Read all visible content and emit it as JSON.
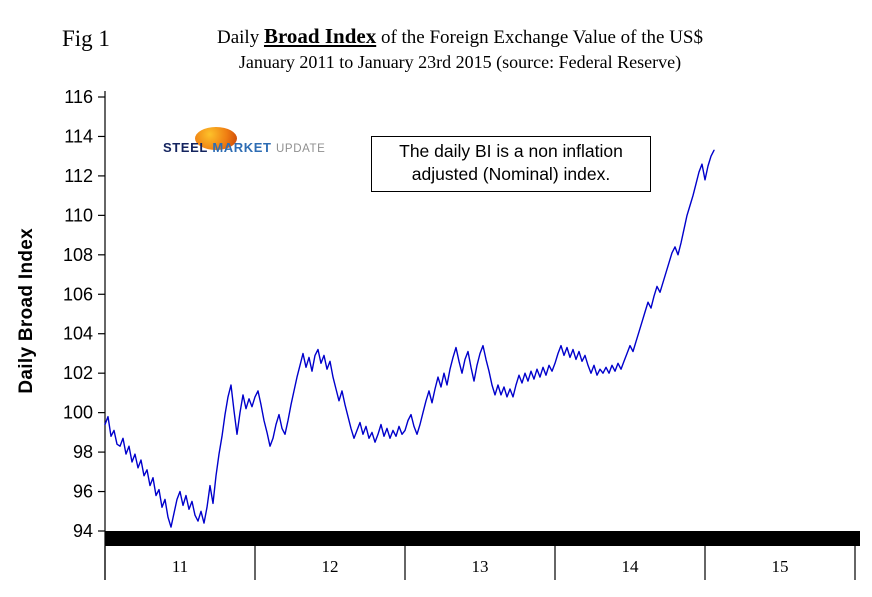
{
  "figure": {
    "fig_label": "Fig 1",
    "title_prefix": "Daily",
    "title_emphasis": "Broad Index",
    "title_suffix": "of the Foreign Exchange Value of the US$",
    "subtitle": "January 2011 to January 23rd 2015 (source: Federal Reserve)"
  },
  "logo": {
    "word1": "STEEL",
    "word2": "MARKET",
    "word3": "UPDATE"
  },
  "annotation": {
    "line1": "The daily BI is a non inflation",
    "line2": "adjusted (Nominal) index."
  },
  "chart_data": {
    "type": "line",
    "title": "Daily Broad Index of the Foreign Exchange Value of the US$",
    "subtitle": "January 2011 to January 23rd 2015 (source: Federal Reserve)",
    "xlabel": "",
    "ylabel": "Daily Broad Index",
    "ylim": [
      94,
      116
    ],
    "yticks": [
      94,
      96,
      98,
      100,
      102,
      104,
      106,
      108,
      110,
      112,
      114,
      116
    ],
    "x_axis_years": [
      "11",
      "12",
      "13",
      "14",
      "15"
    ],
    "x_unit": "years since Jan 2011",
    "grid": false,
    "legend": "none",
    "line_color": "#0000cc",
    "series": [
      {
        "name": "Daily Broad Index (Nominal)",
        "points": [
          [
            0.0,
            99.4
          ],
          [
            0.02,
            99.8
          ],
          [
            0.04,
            98.8
          ],
          [
            0.06,
            99.1
          ],
          [
            0.08,
            98.4
          ],
          [
            0.1,
            98.3
          ],
          [
            0.12,
            98.7
          ],
          [
            0.14,
            97.9
          ],
          [
            0.16,
            98.3
          ],
          [
            0.18,
            97.5
          ],
          [
            0.2,
            97.9
          ],
          [
            0.22,
            97.2
          ],
          [
            0.24,
            97.6
          ],
          [
            0.26,
            96.8
          ],
          [
            0.28,
            97.1
          ],
          [
            0.3,
            96.3
          ],
          [
            0.32,
            96.7
          ],
          [
            0.34,
            95.8
          ],
          [
            0.36,
            96.1
          ],
          [
            0.38,
            95.2
          ],
          [
            0.4,
            95.6
          ],
          [
            0.42,
            94.7
          ],
          [
            0.44,
            94.2
          ],
          [
            0.46,
            94.9
          ],
          [
            0.48,
            95.6
          ],
          [
            0.5,
            96.0
          ],
          [
            0.52,
            95.3
          ],
          [
            0.54,
            95.8
          ],
          [
            0.56,
            95.1
          ],
          [
            0.58,
            95.5
          ],
          [
            0.6,
            94.8
          ],
          [
            0.62,
            94.5
          ],
          [
            0.64,
            95.0
          ],
          [
            0.66,
            94.4
          ],
          [
            0.68,
            95.2
          ],
          [
            0.7,
            96.3
          ],
          [
            0.72,
            95.4
          ],
          [
            0.74,
            96.8
          ],
          [
            0.76,
            97.9
          ],
          [
            0.78,
            98.8
          ],
          [
            0.8,
            99.9
          ],
          [
            0.82,
            100.8
          ],
          [
            0.84,
            101.4
          ],
          [
            0.86,
            100.1
          ],
          [
            0.88,
            98.9
          ],
          [
            0.9,
            100.0
          ],
          [
            0.92,
            100.9
          ],
          [
            0.94,
            100.2
          ],
          [
            0.96,
            100.7
          ],
          [
            0.98,
            100.3
          ],
          [
            1.0,
            100.8
          ],
          [
            1.02,
            101.1
          ],
          [
            1.04,
            100.4
          ],
          [
            1.06,
            99.6
          ],
          [
            1.08,
            99.0
          ],
          [
            1.1,
            98.3
          ],
          [
            1.12,
            98.7
          ],
          [
            1.14,
            99.4
          ],
          [
            1.16,
            99.9
          ],
          [
            1.18,
            99.2
          ],
          [
            1.2,
            98.9
          ],
          [
            1.22,
            99.6
          ],
          [
            1.24,
            100.4
          ],
          [
            1.26,
            101.1
          ],
          [
            1.28,
            101.8
          ],
          [
            1.3,
            102.4
          ],
          [
            1.32,
            103.0
          ],
          [
            1.34,
            102.3
          ],
          [
            1.36,
            102.8
          ],
          [
            1.38,
            102.1
          ],
          [
            1.4,
            102.9
          ],
          [
            1.42,
            103.2
          ],
          [
            1.44,
            102.5
          ],
          [
            1.46,
            102.9
          ],
          [
            1.48,
            102.2
          ],
          [
            1.5,
            102.6
          ],
          [
            1.52,
            101.8
          ],
          [
            1.54,
            101.2
          ],
          [
            1.56,
            100.6
          ],
          [
            1.58,
            101.1
          ],
          [
            1.6,
            100.4
          ],
          [
            1.62,
            99.8
          ],
          [
            1.64,
            99.2
          ],
          [
            1.66,
            98.7
          ],
          [
            1.68,
            99.1
          ],
          [
            1.7,
            99.5
          ],
          [
            1.72,
            98.9
          ],
          [
            1.74,
            99.3
          ],
          [
            1.76,
            98.7
          ],
          [
            1.78,
            99.0
          ],
          [
            1.8,
            98.5
          ],
          [
            1.82,
            98.9
          ],
          [
            1.84,
            99.4
          ],
          [
            1.86,
            98.8
          ],
          [
            1.88,
            99.2
          ],
          [
            1.9,
            98.7
          ],
          [
            1.92,
            99.1
          ],
          [
            1.94,
            98.8
          ],
          [
            1.96,
            99.3
          ],
          [
            1.98,
            98.9
          ],
          [
            2.0,
            99.1
          ],
          [
            2.02,
            99.6
          ],
          [
            2.04,
            99.9
          ],
          [
            2.06,
            99.3
          ],
          [
            2.08,
            98.9
          ],
          [
            2.1,
            99.4
          ],
          [
            2.12,
            100.0
          ],
          [
            2.14,
            100.6
          ],
          [
            2.16,
            101.1
          ],
          [
            2.18,
            100.5
          ],
          [
            2.2,
            101.2
          ],
          [
            2.22,
            101.8
          ],
          [
            2.24,
            101.3
          ],
          [
            2.26,
            102.0
          ],
          [
            2.28,
            101.4
          ],
          [
            2.3,
            102.2
          ],
          [
            2.32,
            102.8
          ],
          [
            2.34,
            103.3
          ],
          [
            2.36,
            102.6
          ],
          [
            2.38,
            102.0
          ],
          [
            2.4,
            102.7
          ],
          [
            2.42,
            103.1
          ],
          [
            2.44,
            102.3
          ],
          [
            2.46,
            101.6
          ],
          [
            2.48,
            102.4
          ],
          [
            2.5,
            103.0
          ],
          [
            2.52,
            103.4
          ],
          [
            2.54,
            102.7
          ],
          [
            2.56,
            102.1
          ],
          [
            2.58,
            101.4
          ],
          [
            2.6,
            100.9
          ],
          [
            2.62,
            101.4
          ],
          [
            2.64,
            100.9
          ],
          [
            2.66,
            101.3
          ],
          [
            2.68,
            100.8
          ],
          [
            2.7,
            101.2
          ],
          [
            2.72,
            100.8
          ],
          [
            2.74,
            101.4
          ],
          [
            2.76,
            101.9
          ],
          [
            2.78,
            101.5
          ],
          [
            2.8,
            102.0
          ],
          [
            2.82,
            101.6
          ],
          [
            2.84,
            102.1
          ],
          [
            2.86,
            101.7
          ],
          [
            2.88,
            102.2
          ],
          [
            2.9,
            101.8
          ],
          [
            2.92,
            102.3
          ],
          [
            2.94,
            101.9
          ],
          [
            2.96,
            102.4
          ],
          [
            2.98,
            102.1
          ],
          [
            3.0,
            102.5
          ],
          [
            3.02,
            103.0
          ],
          [
            3.04,
            103.4
          ],
          [
            3.06,
            102.9
          ],
          [
            3.08,
            103.3
          ],
          [
            3.1,
            102.8
          ],
          [
            3.12,
            103.2
          ],
          [
            3.14,
            102.7
          ],
          [
            3.16,
            103.1
          ],
          [
            3.18,
            102.6
          ],
          [
            3.2,
            102.9
          ],
          [
            3.22,
            102.4
          ],
          [
            3.24,
            102.0
          ],
          [
            3.26,
            102.4
          ],
          [
            3.28,
            101.9
          ],
          [
            3.3,
            102.2
          ],
          [
            3.32,
            102.0
          ],
          [
            3.34,
            102.3
          ],
          [
            3.36,
            102.0
          ],
          [
            3.38,
            102.4
          ],
          [
            3.4,
            102.1
          ],
          [
            3.42,
            102.5
          ],
          [
            3.44,
            102.2
          ],
          [
            3.46,
            102.6
          ],
          [
            3.48,
            103.0
          ],
          [
            3.5,
            103.4
          ],
          [
            3.52,
            103.1
          ],
          [
            3.54,
            103.6
          ],
          [
            3.56,
            104.1
          ],
          [
            3.58,
            104.6
          ],
          [
            3.6,
            105.1
          ],
          [
            3.62,
            105.6
          ],
          [
            3.64,
            105.3
          ],
          [
            3.66,
            105.9
          ],
          [
            3.68,
            106.4
          ],
          [
            3.7,
            106.1
          ],
          [
            3.72,
            106.6
          ],
          [
            3.74,
            107.1
          ],
          [
            3.76,
            107.6
          ],
          [
            3.78,
            108.1
          ],
          [
            3.8,
            108.4
          ],
          [
            3.82,
            108.0
          ],
          [
            3.84,
            108.6
          ],
          [
            3.86,
            109.3
          ],
          [
            3.88,
            110.0
          ],
          [
            3.9,
            110.5
          ],
          [
            3.92,
            111.0
          ],
          [
            3.94,
            111.6
          ],
          [
            3.96,
            112.2
          ],
          [
            3.98,
            112.6
          ],
          [
            4.0,
            111.8
          ],
          [
            4.02,
            112.5
          ],
          [
            4.04,
            113.0
          ],
          [
            4.06,
            113.3
          ]
        ]
      }
    ]
  }
}
